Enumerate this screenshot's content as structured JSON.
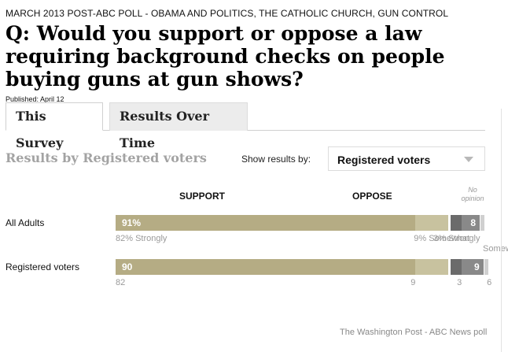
{
  "kicker": "MARCH 2013 POST-ABC POLL - OBAMA AND POLITICS, THE CATHOLIC CHURCH, GUN CONTROL",
  "question": "Q: Would you support or oppose a law requiring background checks on people buying guns at gun shows?",
  "published": "Published: April 12",
  "tabs": [
    {
      "label": "This Survey",
      "active": true
    },
    {
      "label": "Results Over Time",
      "active": false
    }
  ],
  "results_by": "Results by Registered voters",
  "show_results_label": "Show results by:",
  "dropdown": {
    "selected": "Registered voters"
  },
  "headers": {
    "support": "SUPPORT",
    "oppose": "OPPOSE",
    "no_opinion": "No opinion"
  },
  "credit": "The Washington Post - ABC News poll",
  "colors": {
    "support_strong": "#b5ac84",
    "support_some": "#c8c29f",
    "oppose_strong": "#6b6b6b",
    "oppose_some": "#898989",
    "no_opinion": "#d0d0d0"
  },
  "chart_data": {
    "type": "bar",
    "orientation": "horizontal-stacked",
    "categories": [
      "All Adults",
      "Registered voters"
    ],
    "series": [
      {
        "name": "Support strongly",
        "values": [
          82,
          82
        ]
      },
      {
        "name": "Support somewhat",
        "values": [
          9,
          9
        ]
      },
      {
        "name": "Oppose strongly",
        "values": [
          3,
          3
        ]
      },
      {
        "name": "Oppose somewhat",
        "values": [
          5,
          6
        ]
      },
      {
        "name": "No opinion",
        "values": [
          1,
          1
        ]
      }
    ],
    "totals": {
      "support": [
        "91%",
        "90"
      ],
      "oppose": [
        "8",
        "9"
      ]
    },
    "sub_labels": [
      [
        "82% Strongly",
        "9% Somewhat",
        "3% Strongly",
        "Somewhat"
      ],
      [
        "82",
        "9",
        "3",
        "6"
      ]
    ],
    "xlim": [
      0,
      100
    ]
  }
}
